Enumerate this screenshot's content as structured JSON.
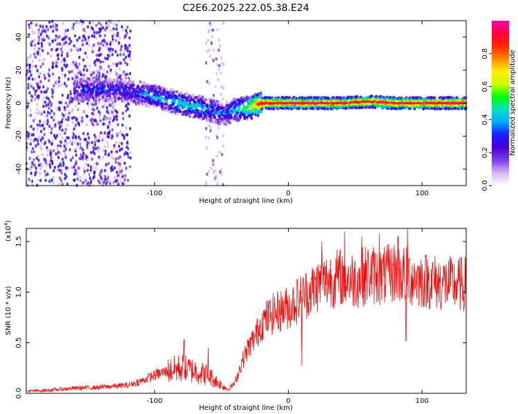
{
  "figure": {
    "title": "C2E6.2025.222.05.38.E24"
  },
  "chart_data": [
    {
      "type": "heatmap",
      "xlabel": "Height of straight line (km)",
      "ylabel": "Frequency (Hz)",
      "xlim": [
        -196,
        133
      ],
      "ylim": [
        -50,
        50
      ],
      "xticks": [
        -100,
        0,
        100
      ],
      "xtick_labels": [
        "-100",
        "0",
        "100"
      ],
      "yticks": [
        -40,
        -20,
        0,
        20,
        40
      ],
      "ytick_labels": [
        "-40",
        "-20",
        "0",
        "20",
        "40"
      ],
      "grid": false,
      "colorbar": {
        "label": "Normalized spectral amplitude",
        "range": [
          0,
          1
        ],
        "ticks": [
          0.0,
          0.2,
          0.4,
          0.6,
          0.8
        ],
        "tick_labels": [
          "0.0",
          "0.2",
          "0.4",
          "0.6",
          "0.8"
        ],
        "colormap": [
          "#ffffff",
          "#d7b7f5",
          "#7a3fe8",
          "#4a00d8",
          "#1a1aff",
          "#00aaff",
          "#00e0c0",
          "#00ff00",
          "#c8ff00",
          "#ffee00",
          "#ff8800",
          "#ff2a00",
          "#ff0040",
          "#ff00aa"
        ]
      },
      "ridge": {
        "x": [
          -160,
          -150,
          -140,
          -130,
          -120,
          -110,
          -100,
          -90,
          -80,
          -70,
          -60,
          -50,
          -45,
          -40,
          -30,
          -20,
          -10,
          0,
          20,
          40,
          60,
          80,
          100,
          133
        ],
        "y": [
          8,
          8,
          8,
          8,
          7,
          6,
          4,
          2,
          0,
          -2,
          -4,
          -6,
          -6,
          -4,
          -3,
          0,
          0,
          0,
          0,
          0,
          1,
          0,
          0,
          0
        ],
        "amplitude": [
          0.25,
          0.3,
          0.3,
          0.28,
          0.3,
          0.35,
          0.4,
          0.4,
          0.45,
          0.45,
          0.4,
          0.35,
          0.35,
          0.45,
          0.6,
          0.9,
          0.9,
          0.9,
          0.9,
          0.9,
          0.9,
          0.9,
          0.9,
          0.95
        ]
      },
      "noise_regions": [
        {
          "x": [
            -196,
            -118
          ],
          "y": [
            -50,
            50
          ],
          "amplitude": 0.2
        },
        {
          "x": [
            -62,
            -48
          ],
          "y": [
            -50,
            50
          ],
          "amplitude": 0.1
        }
      ]
    },
    {
      "type": "line",
      "xlabel": "Height of straight line (km)",
      "ylabel": "SNR (10 * v/v)",
      "multiplier_label": "(x10",
      "multiplier_exponent": "4",
      "multiplier_suffix": ")",
      "xlim": [
        -196,
        133
      ],
      "ylim": [
        0,
        1.63
      ],
      "xticks": [
        -100,
        0,
        100
      ],
      "xtick_labels": [
        "-100",
        "0",
        "100"
      ],
      "yticks": [
        0.0,
        0.5,
        1.0,
        1.5
      ],
      "ytick_labels": [
        "0.0",
        "0.5",
        "1.0",
        "1.5"
      ],
      "grid": false,
      "series": [
        {
          "color": "#ff0000",
          "x": [
            -196,
            -180,
            -160,
            -140,
            -120,
            -110,
            -100,
            -90,
            -80,
            -70,
            -60,
            -50,
            -45,
            -40,
            -35,
            -30,
            -25,
            -20,
            -15,
            -10,
            -5,
            0,
            10,
            20,
            30,
            40,
            50,
            60,
            70,
            80,
            90,
            100,
            110,
            120,
            133
          ],
          "y": [
            0.02,
            0.03,
            0.05,
            0.06,
            0.08,
            0.12,
            0.18,
            0.22,
            0.25,
            0.22,
            0.18,
            0.08,
            0.04,
            0.1,
            0.3,
            0.45,
            0.55,
            0.7,
            0.75,
            0.8,
            0.82,
            0.85,
            0.95,
            1.05,
            1.12,
            1.15,
            1.12,
            1.18,
            1.15,
            1.2,
            1.15,
            1.12,
            1.1,
            1.08,
            1.08
          ],
          "peaks": [
            {
              "x": -78,
              "y": 0.53
            },
            {
              "x": -60,
              "y": 0.45
            },
            {
              "x": -33,
              "y": 0.3
            },
            {
              "x": 10,
              "y": 0.27
            },
            {
              "x": 25,
              "y": 1.5
            },
            {
              "x": 42,
              "y": 1.6
            },
            {
              "x": 55,
              "y": 1.55
            },
            {
              "x": 68,
              "y": 1.58
            },
            {
              "x": 82,
              "y": 1.55
            },
            {
              "x": 88,
              "y": 0.52
            },
            {
              "x": 89,
              "y": 1.63
            }
          ]
        }
      ]
    }
  ]
}
